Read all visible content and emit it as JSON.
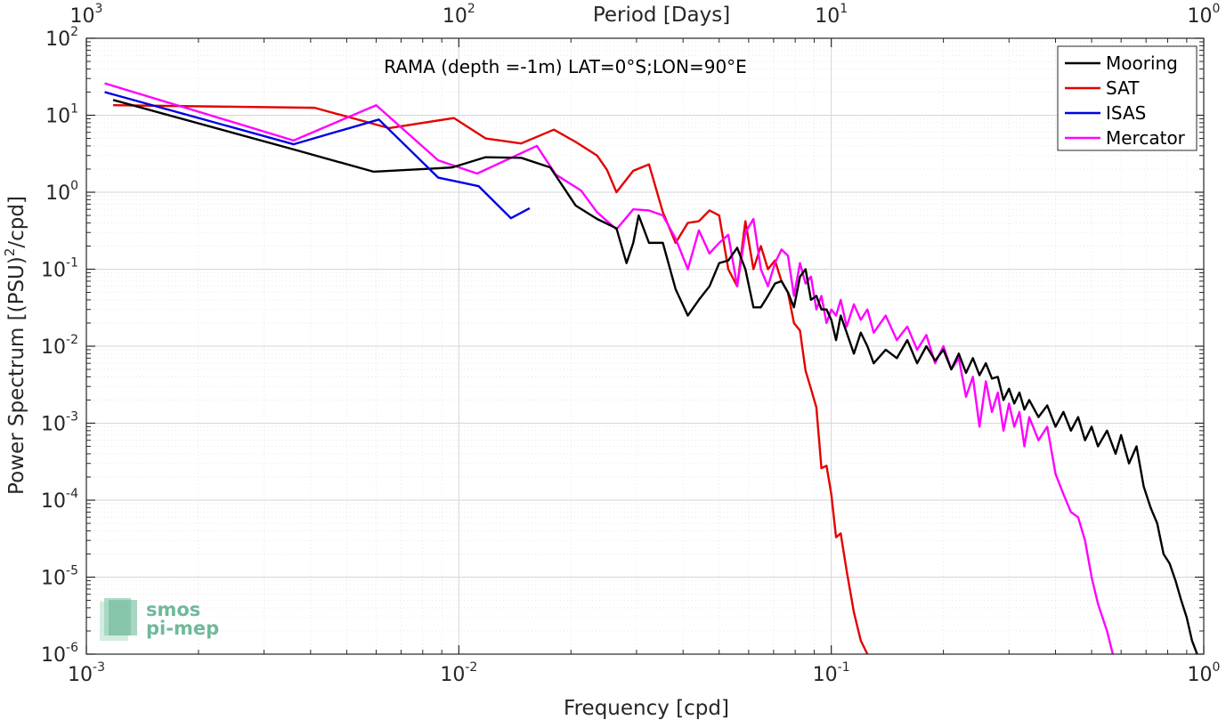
{
  "chart_data": {
    "type": "line",
    "title": "RAMA (depth =-1m) LAT=0°S;LON=90°E",
    "xlabel": "Frequency [cpd]",
    "ylabel_main": "Power Spectrum [(PSU)",
    "ylabel_sup": "2",
    "ylabel_end": "/cpd]",
    "top_xlabel": "Period [Days]",
    "xscale": "log",
    "yscale": "log",
    "xlim": [
      0.001,
      1
    ],
    "ylim": [
      1e-06,
      100
    ],
    "grid": true,
    "legend_position": "top-right",
    "x_ticks": [
      {
        "value": 0.001,
        "base": "10",
        "exp": "-3"
      },
      {
        "value": 0.01,
        "base": "10",
        "exp": "-2"
      },
      {
        "value": 0.1,
        "base": "10",
        "exp": "-1"
      },
      {
        "value": 1,
        "base": "10",
        "exp": "0"
      }
    ],
    "top_ticks": [
      {
        "value": 0.001,
        "base": "10",
        "exp": "3"
      },
      {
        "value": 0.01,
        "base": "10",
        "exp": "2"
      },
      {
        "value": 0.1,
        "base": "10",
        "exp": "1"
      },
      {
        "value": 1,
        "base": "10",
        "exp": "0"
      }
    ],
    "y_ticks": [
      {
        "value": 100,
        "base": "10",
        "exp": "2"
      },
      {
        "value": 10,
        "base": "10",
        "exp": "1"
      },
      {
        "value": 1,
        "base": "10",
        "exp": "0"
      },
      {
        "value": 0.1,
        "base": "10",
        "exp": "-1"
      },
      {
        "value": 0.01,
        "base": "10",
        "exp": "-2"
      },
      {
        "value": 0.001,
        "base": "10",
        "exp": "-3"
      },
      {
        "value": 0.0001,
        "base": "10",
        "exp": "-4"
      },
      {
        "value": 1e-05,
        "base": "10",
        "exp": "-5"
      },
      {
        "value": 1e-06,
        "base": "10",
        "exp": "-6"
      }
    ],
    "series": [
      {
        "name": "Mooring",
        "color": "#000000",
        "points": [
          [
            0.00118,
            15.8
          ],
          [
            0.0036,
            3.6
          ],
          [
            0.0059,
            1.85
          ],
          [
            0.0088,
            2.05
          ],
          [
            0.0096,
            2.1
          ],
          [
            0.0118,
            2.85
          ],
          [
            0.0147,
            2.8
          ],
          [
            0.0176,
            2.1
          ],
          [
            0.0206,
            0.67
          ],
          [
            0.0235,
            0.45
          ],
          [
            0.0265,
            0.34
          ],
          [
            0.0282,
            0.12
          ],
          [
            0.0294,
            0.22
          ],
          [
            0.0304,
            0.5
          ],
          [
            0.0324,
            0.22
          ],
          [
            0.0353,
            0.22
          ],
          [
            0.0382,
            0.055
          ],
          [
            0.0412,
            0.025
          ],
          [
            0.0441,
            0.04
          ],
          [
            0.0471,
            0.06
          ],
          [
            0.05,
            0.12
          ],
          [
            0.0529,
            0.13
          ],
          [
            0.0559,
            0.19
          ],
          [
            0.0588,
            0.1
          ],
          [
            0.0618,
            0.032
          ],
          [
            0.0647,
            0.032
          ],
          [
            0.0676,
            0.045
          ],
          [
            0.0706,
            0.065
          ],
          [
            0.0735,
            0.07
          ],
          [
            0.0765,
            0.05
          ],
          [
            0.0794,
            0.032
          ],
          [
            0.0824,
            0.08
          ],
          [
            0.0853,
            0.1
          ],
          [
            0.0882,
            0.04
          ],
          [
            0.0912,
            0.045
          ],
          [
            0.0941,
            0.03
          ],
          [
            0.0971,
            0.03
          ],
          [
            0.1,
            0.022
          ],
          [
            0.103,
            0.012
          ],
          [
            0.106,
            0.025
          ],
          [
            0.11,
            0.015
          ],
          [
            0.115,
            0.008
          ],
          [
            0.12,
            0.015
          ],
          [
            0.125,
            0.01
          ],
          [
            0.13,
            0.006
          ],
          [
            0.14,
            0.009
          ],
          [
            0.15,
            0.007
          ],
          [
            0.16,
            0.012
          ],
          [
            0.17,
            0.006
          ],
          [
            0.18,
            0.01
          ],
          [
            0.19,
            0.0065
          ],
          [
            0.2,
            0.009
          ],
          [
            0.21,
            0.005
          ],
          [
            0.22,
            0.008
          ],
          [
            0.23,
            0.0045
          ],
          [
            0.24,
            0.007
          ],
          [
            0.25,
            0.0042
          ],
          [
            0.26,
            0.006
          ],
          [
            0.27,
            0.0038
          ],
          [
            0.28,
            0.004
          ],
          [
            0.29,
            0.002
          ],
          [
            0.3,
            0.0028
          ],
          [
            0.31,
            0.0018
          ],
          [
            0.32,
            0.0025
          ],
          [
            0.33,
            0.0015
          ],
          [
            0.34,
            0.002
          ],
          [
            0.36,
            0.0012
          ],
          [
            0.38,
            0.0017
          ],
          [
            0.4,
            0.0009
          ],
          [
            0.42,
            0.0014
          ],
          [
            0.44,
            0.0008
          ],
          [
            0.46,
            0.0012
          ],
          [
            0.48,
            0.0006
          ],
          [
            0.5,
            0.0009
          ],
          [
            0.52,
            0.0005
          ],
          [
            0.55,
            0.0008
          ],
          [
            0.58,
            0.0004
          ],
          [
            0.6,
            0.0007
          ],
          [
            0.63,
            0.0003
          ],
          [
            0.66,
            0.0005
          ],
          [
            0.69,
            0.00015
          ],
          [
            0.72,
            8e-05
          ],
          [
            0.75,
            5e-05
          ],
          [
            0.78,
            2e-05
          ],
          [
            0.81,
            1.5e-05
          ],
          [
            0.84,
            9e-06
          ],
          [
            0.87,
            5e-06
          ],
          [
            0.9,
            3e-06
          ],
          [
            0.93,
            1.5e-06
          ],
          [
            0.96,
            1e-06
          ]
        ]
      },
      {
        "name": "SAT",
        "color": "#e30000",
        "points": [
          [
            0.00118,
            13.5
          ],
          [
            0.0041,
            12.5
          ],
          [
            0.0065,
            6.8
          ],
          [
            0.0097,
            9.2
          ],
          [
            0.0118,
            5.0
          ],
          [
            0.0147,
            4.3
          ],
          [
            0.018,
            6.5
          ],
          [
            0.0206,
            4.5
          ],
          [
            0.0235,
            3.0
          ],
          [
            0.025,
            1.95
          ],
          [
            0.0265,
            1.0
          ],
          [
            0.0294,
            1.9
          ],
          [
            0.0324,
            2.3
          ],
          [
            0.0353,
            0.55
          ],
          [
            0.0382,
            0.22
          ],
          [
            0.0412,
            0.4
          ],
          [
            0.0441,
            0.42
          ],
          [
            0.0471,
            0.58
          ],
          [
            0.05,
            0.5
          ],
          [
            0.0529,
            0.1
          ],
          [
            0.0559,
            0.06
          ],
          [
            0.0588,
            0.42
          ],
          [
            0.0618,
            0.1
          ],
          [
            0.0647,
            0.2
          ],
          [
            0.0676,
            0.1
          ],
          [
            0.0706,
            0.13
          ],
          [
            0.0735,
            0.07
          ],
          [
            0.0765,
            0.05
          ],
          [
            0.0794,
            0.02
          ],
          [
            0.0824,
            0.016
          ],
          [
            0.0853,
            0.0048
          ],
          [
            0.0882,
            0.0028
          ],
          [
            0.0912,
            0.0016
          ],
          [
            0.0941,
            0.00026
          ],
          [
            0.0971,
            0.00028
          ],
          [
            0.1,
            0.00012
          ],
          [
            0.103,
            3.3e-05
          ],
          [
            0.106,
            3.7e-05
          ],
          [
            0.11,
            1.2e-05
          ],
          [
            0.115,
            3.5e-06
          ],
          [
            0.12,
            1.5e-06
          ],
          [
            0.125,
            1e-06
          ]
        ]
      },
      {
        "name": "ISAS",
        "color": "#0000e3",
        "points": [
          [
            0.00112,
            20.0
          ],
          [
            0.0036,
            4.2
          ],
          [
            0.0061,
            8.8
          ],
          [
            0.0088,
            1.55
          ],
          [
            0.0113,
            1.2
          ],
          [
            0.0138,
            0.46
          ],
          [
            0.0155,
            0.62
          ]
        ]
      },
      {
        "name": "Mercator",
        "color": "#ff00ff",
        "points": [
          [
            0.00112,
            26.0
          ],
          [
            0.0036,
            4.7
          ],
          [
            0.006,
            13.5
          ],
          [
            0.0088,
            2.6
          ],
          [
            0.0112,
            1.75
          ],
          [
            0.0162,
            4.0
          ],
          [
            0.0182,
            1.7
          ],
          [
            0.0213,
            1.05
          ],
          [
            0.0235,
            0.55
          ],
          [
            0.0265,
            0.33
          ],
          [
            0.0294,
            0.6
          ],
          [
            0.0324,
            0.58
          ],
          [
            0.0353,
            0.5
          ],
          [
            0.0382,
            0.25
          ],
          [
            0.0412,
            0.1
          ],
          [
            0.0441,
            0.32
          ],
          [
            0.0471,
            0.16
          ],
          [
            0.05,
            0.22
          ],
          [
            0.0529,
            0.28
          ],
          [
            0.0559,
            0.06
          ],
          [
            0.0588,
            0.3
          ],
          [
            0.0618,
            0.45
          ],
          [
            0.0647,
            0.1
          ],
          [
            0.0676,
            0.06
          ],
          [
            0.0706,
            0.12
          ],
          [
            0.0735,
            0.18
          ],
          [
            0.0765,
            0.15
          ],
          [
            0.0794,
            0.045
          ],
          [
            0.0824,
            0.12
          ],
          [
            0.0853,
            0.065
          ],
          [
            0.0882,
            0.08
          ],
          [
            0.0912,
            0.03
          ],
          [
            0.0941,
            0.045
          ],
          [
            0.0971,
            0.02
          ],
          [
            0.1,
            0.03
          ],
          [
            0.103,
            0.025
          ],
          [
            0.106,
            0.04
          ],
          [
            0.11,
            0.018
          ],
          [
            0.115,
            0.035
          ],
          [
            0.12,
            0.022
          ],
          [
            0.125,
            0.03
          ],
          [
            0.13,
            0.015
          ],
          [
            0.14,
            0.025
          ],
          [
            0.15,
            0.012
          ],
          [
            0.16,
            0.018
          ],
          [
            0.17,
            0.009
          ],
          [
            0.18,
            0.014
          ],
          [
            0.19,
            0.006
          ],
          [
            0.2,
            0.01
          ],
          [
            0.21,
            0.005
          ],
          [
            0.22,
            0.007
          ],
          [
            0.23,
            0.0022
          ],
          [
            0.24,
            0.004
          ],
          [
            0.25,
            0.0009
          ],
          [
            0.26,
            0.0035
          ],
          [
            0.27,
            0.0014
          ],
          [
            0.28,
            0.0025
          ],
          [
            0.29,
            0.0008
          ],
          [
            0.3,
            0.0018
          ],
          [
            0.31,
            0.0009
          ],
          [
            0.32,
            0.0014
          ],
          [
            0.33,
            0.0005
          ],
          [
            0.34,
            0.0012
          ],
          [
            0.36,
            0.0006
          ],
          [
            0.38,
            0.0009
          ],
          [
            0.4,
            0.00022
          ],
          [
            0.42,
            0.00012
          ],
          [
            0.44,
            7e-05
          ],
          [
            0.46,
            6e-05
          ],
          [
            0.48,
            3e-05
          ],
          [
            0.5,
            1e-05
          ],
          [
            0.52,
            4.5e-06
          ],
          [
            0.55,
            2e-06
          ],
          [
            0.57,
            1e-06
          ]
        ]
      }
    ]
  },
  "logo": {
    "line1": "smos",
    "line2": "pi-mep"
  }
}
